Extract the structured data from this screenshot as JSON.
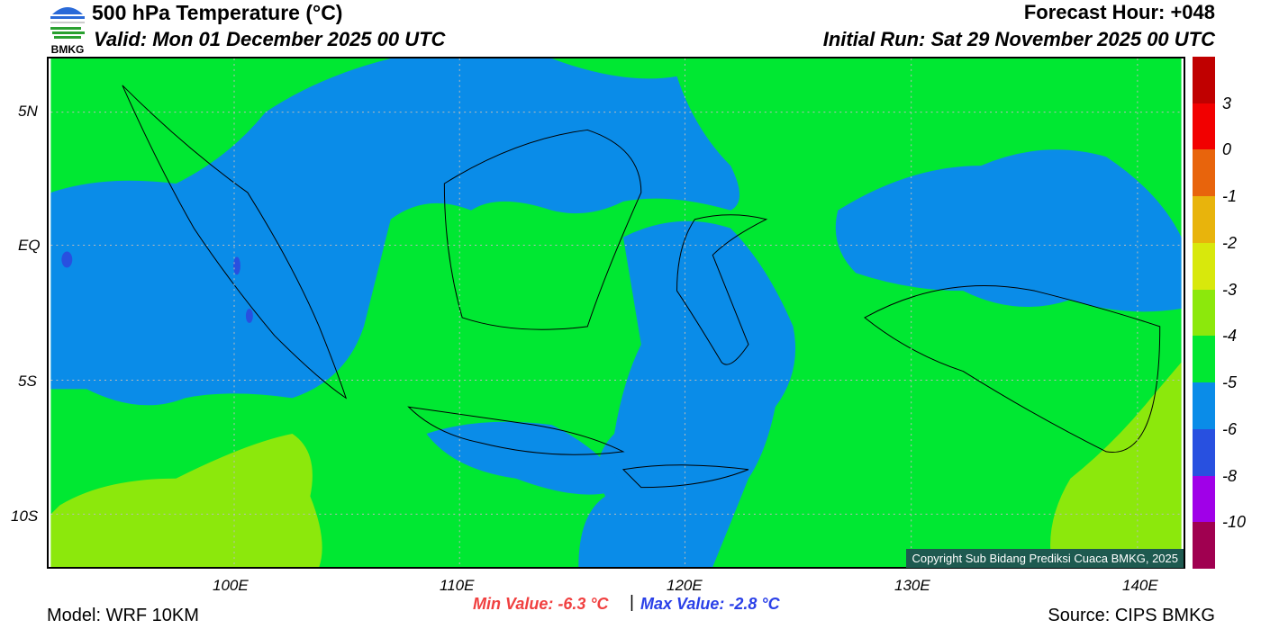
{
  "header": {
    "title": "500 hPa Temperature (°C)",
    "valid": "Valid: Mon 01 December 2025 00 UTC",
    "forecast_hour": "Forecast Hour: +048",
    "initial_run": "Initial Run: Sat 29 November 2025 00 UTC",
    "logo_text": "BMKG"
  },
  "map": {
    "lat_labels": [
      "5N",
      "EQ",
      "5S",
      "10S"
    ],
    "lon_labels": [
      "100E",
      "110E",
      "120E",
      "130E",
      "140E"
    ],
    "copyright": "Copyright Sub Bidang Prediksi Cuaca BMKG, 2025"
  },
  "colorbar": {
    "labels": [
      "3",
      "0",
      "-1",
      "-2",
      "-3",
      "-4",
      "-5",
      "-6",
      "-8",
      "-10"
    ],
    "colors": [
      "#c00000",
      "#f20000",
      "#e8640c",
      "#e8b40c",
      "#d8e80c",
      "#8ce80c",
      "#00e832",
      "#0a8ce8",
      "#2850e0",
      "#a000e8",
      "#a00050"
    ]
  },
  "stats": {
    "min": "Min Value: -6.3 °C",
    "separator": "|",
    "max": "Max Value: -2.8 °C"
  },
  "footer": {
    "model": "Model: WRF 10KM",
    "source": "Source: CIPS BMKG"
  }
}
